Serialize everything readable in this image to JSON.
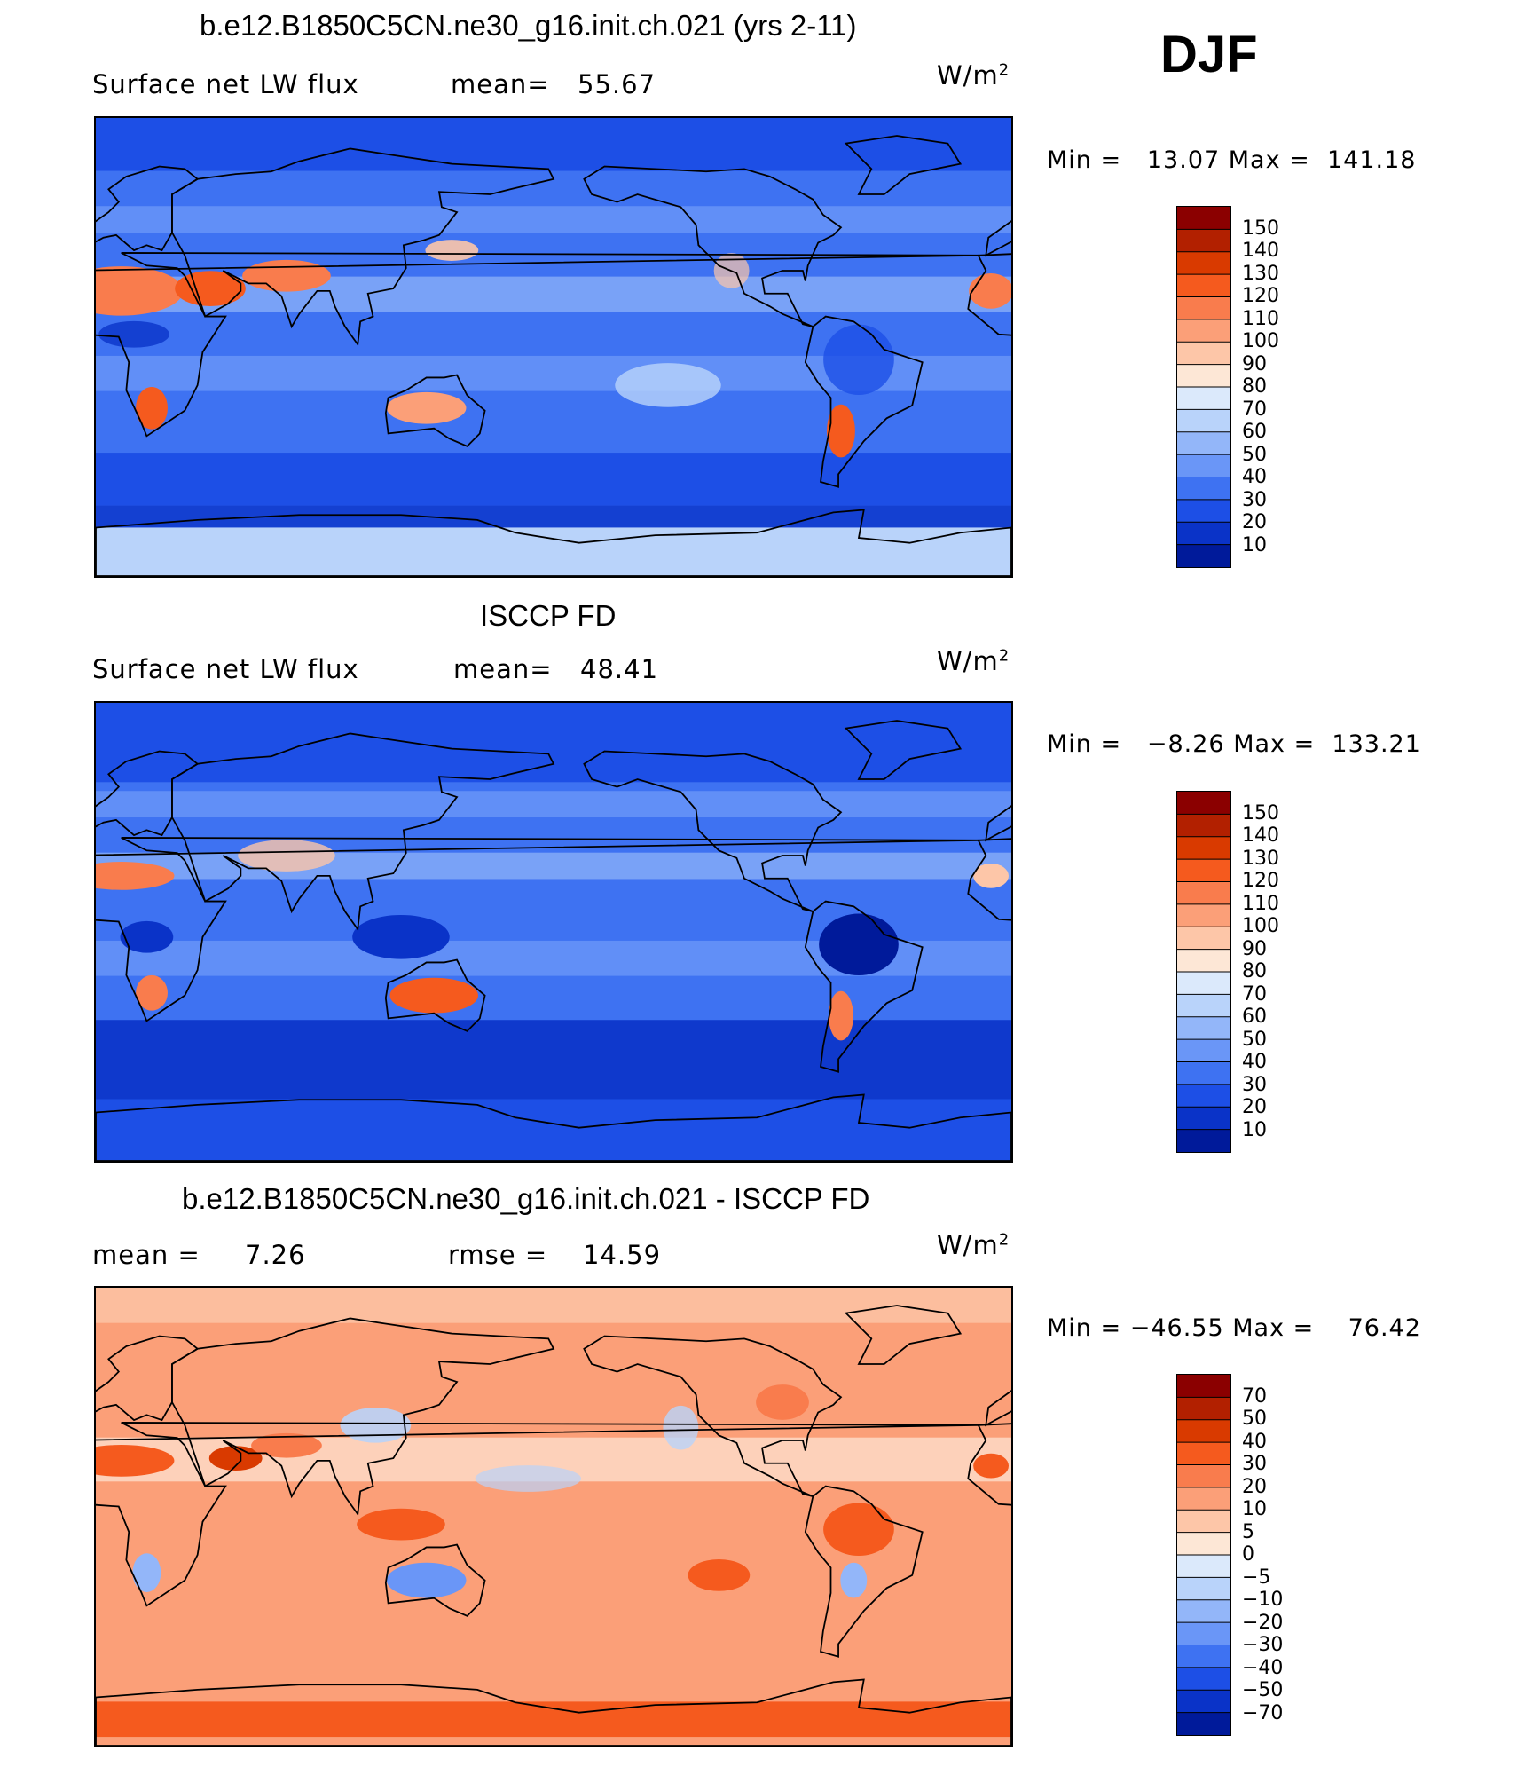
{
  "season": "DJF",
  "chart_data": [
    {
      "type": "heatmap",
      "title": "b.e12.B1850C5CN.ne30_g16.init.ch.021 (yrs 2-11)",
      "variable": "Surface net LW flux",
      "stat1_label": "mean=",
      "stat1_value": "55.67",
      "units": "W/m",
      "units_exp": "2",
      "min_label": "Min =",
      "min_value": "13.07",
      "max_label": "Max =",
      "max_value": "141.18",
      "colorbar_ticks": [
        "150",
        "140",
        "130",
        "120",
        "110",
        "100",
        "90",
        "80",
        "70",
        "60",
        "50",
        "40",
        "30",
        "20",
        "10"
      ],
      "colorbar_colors": [
        "#8b0000",
        "#b22000",
        "#d93a00",
        "#f55a1e",
        "#f97c4d",
        "#fb9f78",
        "#fdc6a8",
        "#fde7d6",
        "#dbe9fb",
        "#b9d3fa",
        "#93b6f9",
        "#6a96f7",
        "#3e72f2",
        "#1d4fe6",
        "#0a33c8",
        "#001a9a"
      ],
      "field": "model"
    },
    {
      "type": "heatmap",
      "title": "ISCCP FD",
      "variable": "Surface net LW flux",
      "stat1_label": "mean=",
      "stat1_value": "48.41",
      "units": "W/m",
      "units_exp": "2",
      "min_label": "Min =",
      "min_value": "−8.26",
      "max_label": "Max =",
      "max_value": "133.21",
      "colorbar_ticks": [
        "150",
        "140",
        "130",
        "120",
        "110",
        "100",
        "90",
        "80",
        "70",
        "60",
        "50",
        "40",
        "30",
        "20",
        "10"
      ],
      "colorbar_colors": [
        "#8b0000",
        "#b22000",
        "#d93a00",
        "#f55a1e",
        "#f97c4d",
        "#fb9f78",
        "#fdc6a8",
        "#fde7d6",
        "#dbe9fb",
        "#b9d3fa",
        "#93b6f9",
        "#6a96f7",
        "#3e72f2",
        "#1d4fe6",
        "#0a33c8",
        "#001a9a"
      ],
      "field": "obs"
    },
    {
      "type": "heatmap",
      "title": "b.e12.B1850C5CN.ne30_g16.init.ch.021 - ISCCP FD",
      "stat1_label": "mean =",
      "stat1_value": "7.26",
      "stat2_label": "rmse =",
      "stat2_value": "14.59",
      "units": "W/m",
      "units_exp": "2",
      "min_label": "Min =",
      "min_value": "−46.55",
      "max_label": "Max =",
      "max_value": "76.42",
      "colorbar_ticks": [
        "70",
        "50",
        "40",
        "30",
        "20",
        "10",
        "5",
        "0",
        "−5",
        "−10",
        "−20",
        "−30",
        "−40",
        "−50",
        "−70"
      ],
      "colorbar_colors": [
        "#8b0000",
        "#b22000",
        "#d93a00",
        "#f55a1e",
        "#f97c4d",
        "#fb9f78",
        "#fdc6a8",
        "#fde7d6",
        "#dbe9fb",
        "#b9d3fa",
        "#93b6f9",
        "#6a96f7",
        "#3e72f2",
        "#1d4fe6",
        "#0a33c8",
        "#001a9a"
      ],
      "field": "diff"
    }
  ]
}
